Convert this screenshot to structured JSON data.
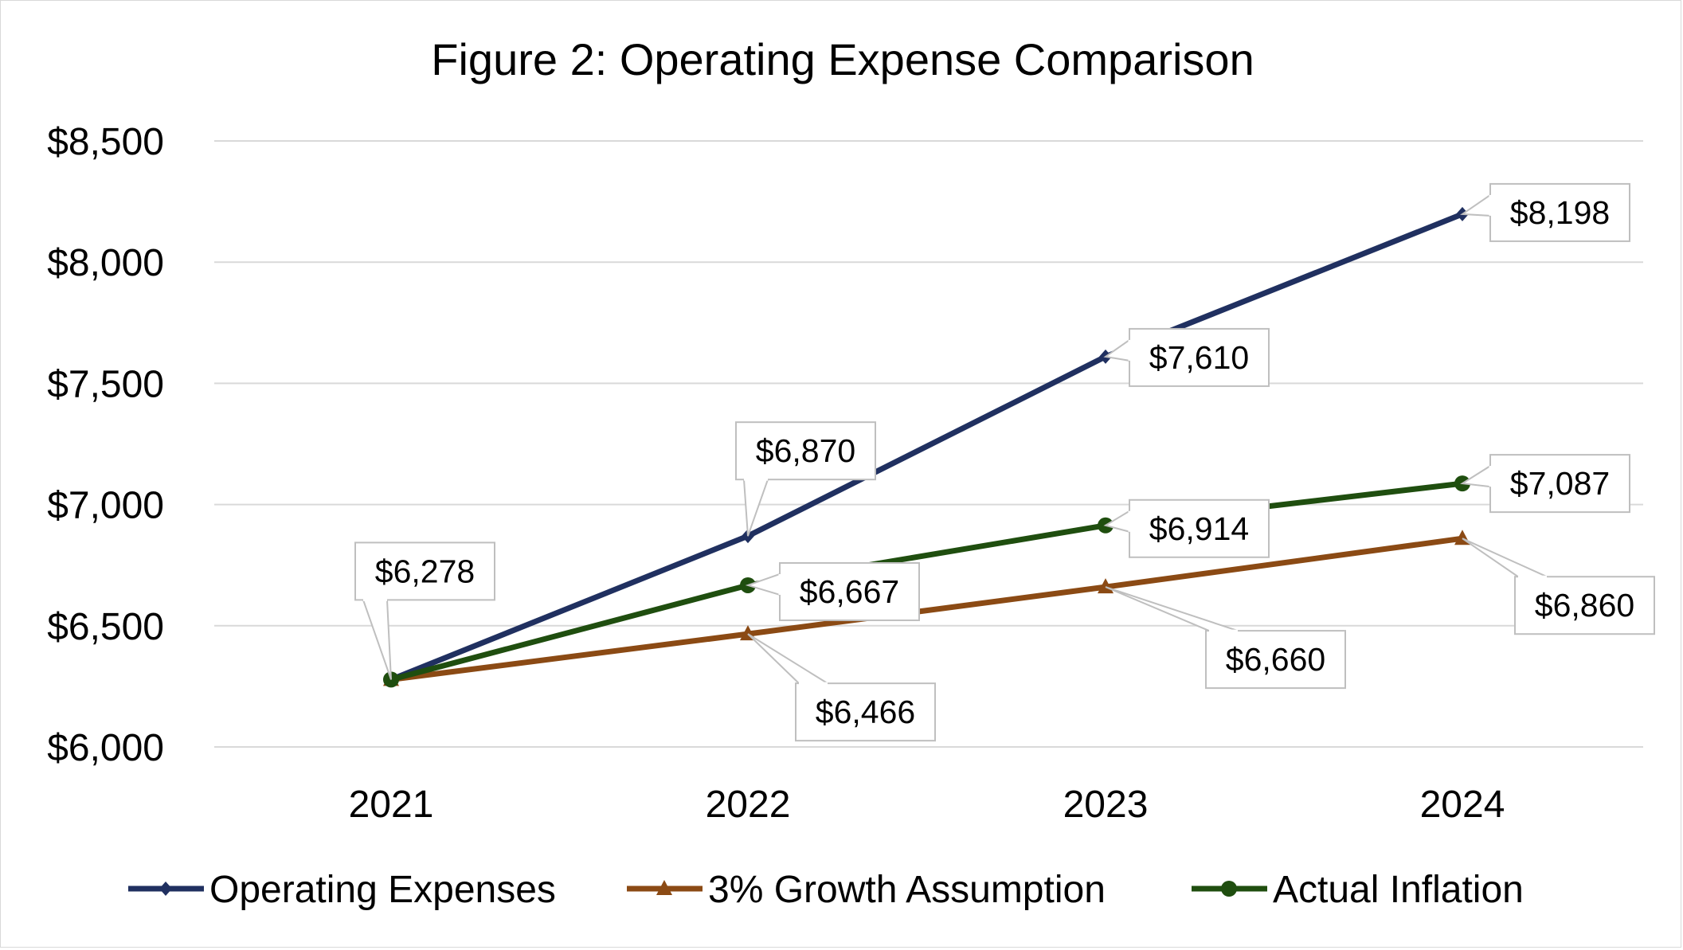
{
  "chart_data": {
    "type": "line",
    "title": "Figure 2: Operating Expense Comparison",
    "xlabel": "",
    "ylabel": "",
    "categories": [
      "2021",
      "2022",
      "2023",
      "2024"
    ],
    "ylim": [
      6000,
      8500
    ],
    "yticks": [
      6000,
      6500,
      7000,
      7500,
      8000,
      8500
    ],
    "ytick_labels": [
      "$6,000",
      "$6,500",
      "$7,000",
      "$7,500",
      "$8,000",
      "$8,500"
    ],
    "grid": true,
    "legend_position": "bottom",
    "series": [
      {
        "name": "Operating Expenses",
        "values": [
          6278,
          6870,
          7610,
          8198
        ],
        "labels": [
          "$6,278",
          "$6,870",
          "$7,610",
          "$8,198"
        ],
        "color": "#203060",
        "marker": "diamond"
      },
      {
        "name": "3% Growth Assumption",
        "values": [
          6278,
          6466,
          6660,
          6860
        ],
        "labels": [
          "",
          "$6,466",
          "$6,660",
          "$6,860"
        ],
        "color": "#8b4a14",
        "marker": "triangle"
      },
      {
        "name": "Actual Inflation",
        "values": [
          6278,
          6667,
          6914,
          7087
        ],
        "labels": [
          "",
          "$6,667",
          "$6,914",
          "$7,087"
        ],
        "color": "#1f4e0f",
        "marker": "circle"
      }
    ]
  }
}
